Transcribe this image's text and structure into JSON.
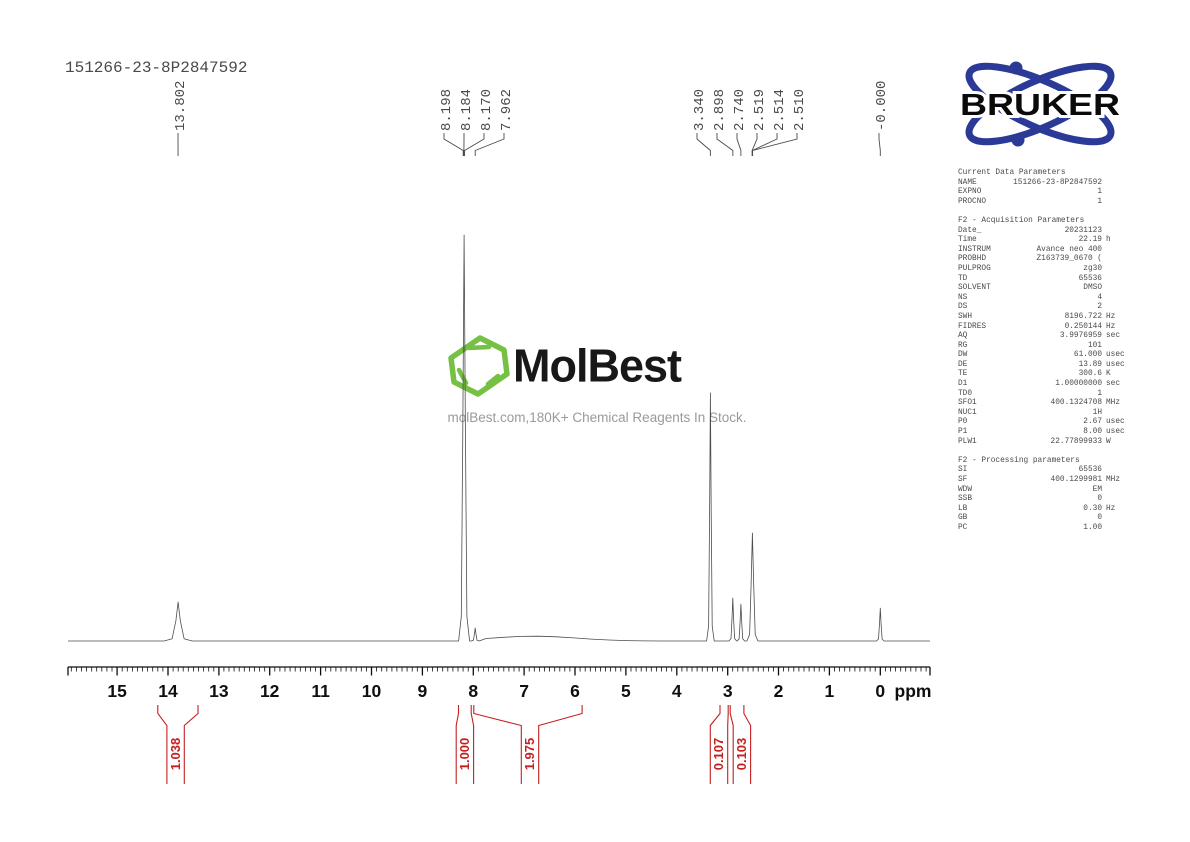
{
  "title": "151266-23-8P2847592",
  "colors": {
    "accent_red": "#c42020",
    "spectrum_line": "#4d4d4d",
    "label_gray": "#4a4a4a",
    "axis_black": "#0f0f0f",
    "bruker_blue": "#2b3a96",
    "molbest_green": "#76c043",
    "tagline_gray": "#9a9a9a"
  },
  "peak_label_groups": [
    {
      "labels": [
        "13.802"
      ],
      "ppm": [
        13.802
      ]
    },
    {
      "labels": [
        "8.198",
        "8.184",
        "8.170",
        "7.962"
      ],
      "ppm": [
        8.198,
        8.184,
        8.17,
        7.962
      ]
    },
    {
      "labels": [
        "3.340",
        "2.898",
        "2.740",
        "2.519",
        "2.514",
        "2.510"
      ],
      "ppm": [
        3.34,
        2.898,
        2.74,
        2.519,
        2.514,
        2.51
      ]
    },
    {
      "labels": [
        "-0.000"
      ],
      "ppm": [
        0.0
      ]
    }
  ],
  "watermark": {
    "brand": "MolBest",
    "tagline": "molBest.com,180K+ Chemical Reagents In Stock.",
    "icon": "benzene-hexagon-icon"
  },
  "bruker": {
    "wordmark": "BRUKER"
  },
  "parameters": {
    "sections": [
      {
        "heading": "Current Data Parameters",
        "rows": [
          {
            "label": "NAME",
            "value": "151266-23-8P2847592",
            "unit": ""
          },
          {
            "label": "EXPNO",
            "value": "1",
            "unit": ""
          },
          {
            "label": "PROCNO",
            "value": "1",
            "unit": ""
          }
        ]
      },
      {
        "heading": "F2 - Acquisition Parameters",
        "rows": [
          {
            "label": "Date_",
            "value": "20231123",
            "unit": ""
          },
          {
            "label": "Time",
            "value": "22.19",
            "unit": "h"
          },
          {
            "label": "INSTRUM",
            "value": "Avance neo 400",
            "unit": ""
          },
          {
            "label": "PROBHD",
            "value": "Z163739_0670 (",
            "unit": ""
          },
          {
            "label": "PULPROG",
            "value": "zg30",
            "unit": ""
          },
          {
            "label": "TD",
            "value": "65536",
            "unit": ""
          },
          {
            "label": "SOLVENT",
            "value": "DMSO",
            "unit": ""
          },
          {
            "label": "NS",
            "value": "4",
            "unit": ""
          },
          {
            "label": "DS",
            "value": "2",
            "unit": ""
          },
          {
            "label": "SWH",
            "value": "8196.722",
            "unit": "Hz"
          },
          {
            "label": "FIDRES",
            "value": "0.250144",
            "unit": "Hz"
          },
          {
            "label": "AQ",
            "value": "3.9976959",
            "unit": "sec"
          },
          {
            "label": "RG",
            "value": "101",
            "unit": ""
          },
          {
            "label": "DW",
            "value": "61.000",
            "unit": "usec"
          },
          {
            "label": "DE",
            "value": "13.89",
            "unit": "usec"
          },
          {
            "label": "TE",
            "value": "300.6",
            "unit": "K"
          },
          {
            "label": "D1",
            "value": "1.00000000",
            "unit": "sec"
          },
          {
            "label": "TD0",
            "value": "1",
            "unit": ""
          },
          {
            "label": "SFO1",
            "value": "400.1324708",
            "unit": "MHz"
          },
          {
            "label": "NUC1",
            "value": "1H",
            "unit": ""
          },
          {
            "label": "P0",
            "value": "2.67",
            "unit": "usec"
          },
          {
            "label": "P1",
            "value": "8.00",
            "unit": "usec"
          },
          {
            "label": "PLW1",
            "value": "22.77899933",
            "unit": "W"
          }
        ]
      },
      {
        "heading": "F2 - Processing parameters",
        "rows": [
          {
            "label": "SI",
            "value": "65536",
            "unit": ""
          },
          {
            "label": "SF",
            "value": "400.1299981",
            "unit": "MHz"
          },
          {
            "label": "WDW",
            "value": "EM",
            "unit": ""
          },
          {
            "label": "SSB",
            "value": "0",
            "unit": ""
          },
          {
            "label": "LB",
            "value": "0.30",
            "unit": "Hz"
          },
          {
            "label": "GB",
            "value": "0",
            "unit": ""
          },
          {
            "label": "PC",
            "value": "1.00",
            "unit": ""
          }
        ]
      }
    ]
  },
  "axis": {
    "unit": "ppm",
    "major_ticks": [
      15,
      14,
      13,
      12,
      11,
      10,
      9,
      8,
      7,
      6,
      5,
      4,
      3,
      2,
      1,
      0
    ],
    "minor_tick_step": 0.1,
    "range_ppm": [
      15.97,
      -0.98
    ]
  },
  "chart_data": {
    "type": "line",
    "title": "1H NMR spectrum 151266-23-8P2847592 (400 MHz, DMSO)",
    "xlabel": "ppm",
    "x_range": [
      15.97,
      -0.98
    ],
    "solvent": "DMSO",
    "grid": false,
    "peaks": [
      {
        "ppm": 13.802,
        "rel_height": 0.096,
        "shape": "broad"
      },
      {
        "ppm": 8.198,
        "rel_height": 0.15,
        "shape": "sharp"
      },
      {
        "ppm": 8.184,
        "rel_height": 1.0,
        "shape": "sharp"
      },
      {
        "ppm": 8.17,
        "rel_height": 0.12,
        "shape": "sharp"
      },
      {
        "ppm": 7.962,
        "rel_height": 0.032,
        "shape": "sharp"
      },
      {
        "ppm": 3.34,
        "rel_height": 0.611,
        "shape": "sharp"
      },
      {
        "ppm": 2.898,
        "rel_height": 0.106,
        "shape": "sharp"
      },
      {
        "ppm": 2.74,
        "rel_height": 0.091,
        "shape": "sharp"
      },
      {
        "ppm": 2.519,
        "rel_height": 0.24,
        "shape": "sharp"
      },
      {
        "ppm": 2.514,
        "rel_height": 0.266,
        "shape": "sharp"
      },
      {
        "ppm": 2.51,
        "rel_height": 0.23,
        "shape": "sharp"
      },
      {
        "ppm": 0.0,
        "rel_height": 0.081,
        "shape": "sharp"
      }
    ],
    "integrals": [
      {
        "value": "1.038",
        "from_ppm": 14.2,
        "to_ppm": 13.41
      },
      {
        "value": "1.000",
        "from_ppm": 8.29,
        "to_ppm": 8.04
      },
      {
        "value": "1.975",
        "from_ppm": 7.99,
        "to_ppm": 5.86
      },
      {
        "value": "0.107",
        "from_ppm": 3.15,
        "to_ppm": 2.99
      },
      {
        "value": "0.103",
        "from_ppm": 2.95,
        "to_ppm": 2.68
      }
    ],
    "baseline_hump": {
      "from_ppm": 7.75,
      "to_ppm": 4.3,
      "center_ppm": 6.8,
      "max_rel_height": 0.012
    }
  }
}
